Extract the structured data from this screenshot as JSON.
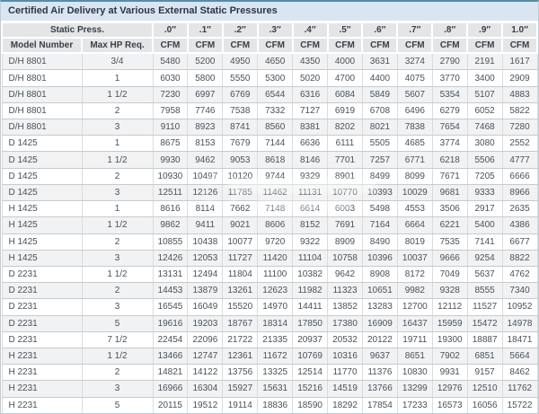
{
  "title": "Certified Air Delivery at Various External Static Pressures",
  "colors": {
    "top_border": "#538ea6",
    "title_bar_bg": "#d9e5f1",
    "title_text": "#2d3640",
    "header_bg": "#e4e5e7",
    "row_stripe": "#f1f2f3",
    "row_plain": "#ffffff",
    "data_text": "#4a5158",
    "grid_line": "#dadbdc"
  },
  "table": {
    "header": {
      "static_press_label": "Static Press.",
      "model_col_label": "Model Number",
      "hp_col_label": "Max HP Req.",
      "unit_label": "CFM",
      "pressure_labels": [
        ".0″",
        ".1″",
        ".2″",
        ".3″",
        ".4″",
        ".5″",
        ".6″",
        ".7″",
        ".8″",
        ".9″",
        "1.0″"
      ]
    },
    "rows": [
      {
        "model": "D/H 8801",
        "hp": "3/4",
        "cfm": [
          5480,
          5200,
          4950,
          4650,
          4350,
          4000,
          3631,
          3274,
          2790,
          2191,
          1617
        ]
      },
      {
        "model": "D/H 8801",
        "hp": "1",
        "cfm": [
          6030,
          5800,
          5550,
          5300,
          5020,
          4700,
          4400,
          4075,
          3770,
          3400,
          2909
        ]
      },
      {
        "model": "D/H 8801",
        "hp": "1 1/2",
        "cfm": [
          7230,
          6997,
          6769,
          6544,
          6316,
          6084,
          5849,
          5607,
          5354,
          5107,
          4883
        ]
      },
      {
        "model": "D/H 8801",
        "hp": "2",
        "cfm": [
          7958,
          7746,
          7538,
          7332,
          7127,
          6919,
          6708,
          6496,
          6279,
          6052,
          5822
        ]
      },
      {
        "model": "D/H 8801",
        "hp": "3",
        "cfm": [
          9110,
          8923,
          8741,
          8560,
          8381,
          8202,
          8021,
          7838,
          7654,
          7468,
          7280
        ]
      },
      {
        "model": "D 1425",
        "hp": "1",
        "cfm": [
          8675,
          8153,
          7679,
          7144,
          6636,
          6111,
          5505,
          4685,
          3774,
          3080,
          2552
        ]
      },
      {
        "model": "D 1425",
        "hp": "1 1/2",
        "cfm": [
          9930,
          9462,
          9053,
          8618,
          8146,
          7701,
          7257,
          6771,
          6218,
          5506,
          4777
        ]
      },
      {
        "model": "D 1425",
        "hp": "2",
        "cfm": [
          10930,
          10497,
          10120,
          9744,
          9329,
          8901,
          8499,
          8099,
          7671,
          7205,
          6666
        ]
      },
      {
        "model": "D 1425",
        "hp": "3",
        "cfm": [
          12511,
          12126,
          11785,
          11462,
          11131,
          10770,
          10393,
          10029,
          9681,
          9333,
          8966
        ]
      },
      {
        "model": "H 1425",
        "hp": "1",
        "cfm": [
          8616,
          8114,
          7662,
          7148,
          6614,
          6003,
          5498,
          4553,
          3506,
          2917,
          2635
        ]
      },
      {
        "model": "H 1425",
        "hp": "1 1/2",
        "cfm": [
          9862,
          9411,
          9021,
          8606,
          8152,
          7691,
          7164,
          6664,
          6221,
          5400,
          4386
        ]
      },
      {
        "model": "H 1425",
        "hp": "2",
        "cfm": [
          10855,
          10438,
          10077,
          9720,
          9322,
          8909,
          8490,
          8019,
          7535,
          7141,
          6677
        ]
      },
      {
        "model": "H 1425",
        "hp": "3",
        "cfm": [
          12426,
          12053,
          11727,
          11420,
          11104,
          10758,
          10396,
          10037,
          9666,
          9254,
          8822
        ]
      },
      {
        "model": "D 2231",
        "hp": "1 1/2",
        "cfm": [
          13131,
          12494,
          11804,
          11100,
          10382,
          9642,
          8908,
          8172,
          7049,
          5637,
          4762
        ]
      },
      {
        "model": "D 2231",
        "hp": "2",
        "cfm": [
          14453,
          13879,
          13261,
          12623,
          11982,
          11323,
          10651,
          9982,
          9328,
          8555,
          7340
        ]
      },
      {
        "model": "D 2231",
        "hp": "3",
        "cfm": [
          16545,
          16049,
          15520,
          14970,
          14411,
          13852,
          13283,
          12700,
          12112,
          11527,
          10952
        ]
      },
      {
        "model": "D 2231",
        "hp": "5",
        "cfm": [
          19616,
          19203,
          18767,
          18314,
          17850,
          17380,
          16909,
          16437,
          15959,
          15472,
          14978
        ]
      },
      {
        "model": "D 2231",
        "hp": "7 1/2",
        "cfm": [
          22454,
          22096,
          21722,
          21335,
          20937,
          20532,
          20122,
          19711,
          19300,
          18887,
          18471
        ]
      },
      {
        "model": "H 2231",
        "hp": "1 1/2",
        "cfm": [
          13466,
          12747,
          12361,
          11672,
          10769,
          10316,
          9637,
          8651,
          7902,
          6851,
          5664
        ]
      },
      {
        "model": "H 2231",
        "hp": "2",
        "cfm": [
          14821,
          14122,
          13756,
          13325,
          12514,
          11770,
          11376,
          10830,
          9931,
          9157,
          8462
        ]
      },
      {
        "model": "H 2231",
        "hp": "3",
        "cfm": [
          16966,
          16304,
          15927,
          15631,
          15216,
          14519,
          13766,
          13299,
          12976,
          12510,
          11762
        ]
      },
      {
        "model": "H 2231",
        "hp": "5",
        "cfm": [
          20115,
          19512,
          19114,
          18836,
          18590,
          18292,
          17854,
          17233,
          16573,
          16056,
          15722
        ]
      }
    ]
  }
}
